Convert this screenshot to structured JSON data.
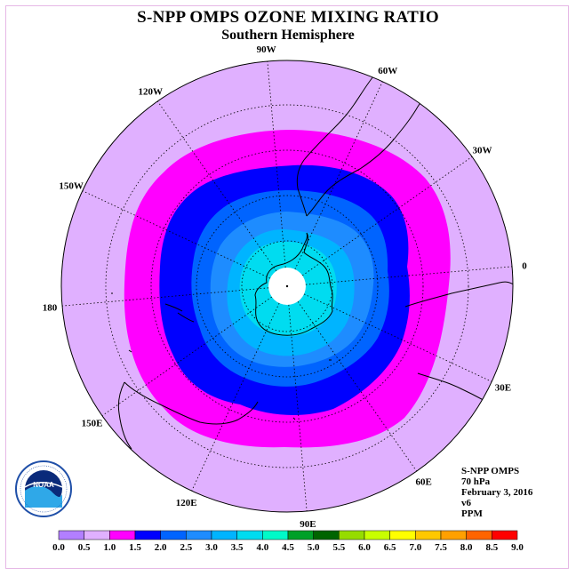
{
  "title": "S-NPP OMPS OZONE MIXING RATIO",
  "subtitle": "Southern Hemisphere",
  "longitude_labels": [
    {
      "text": "90W",
      "lon": -90
    },
    {
      "text": "60W",
      "lon": -60
    },
    {
      "text": "30W",
      "lon": -30
    },
    {
      "text": "0",
      "lon": 0
    },
    {
      "text": "30E",
      "lon": 30
    },
    {
      "text": "60E",
      "lon": 60
    },
    {
      "text": "90E",
      "lon": 90
    },
    {
      "text": "120E",
      "lon": 120
    },
    {
      "text": "150E",
      "lon": 150
    },
    {
      "text": "180",
      "lon": 180
    },
    {
      "text": "150W",
      "lon": -150
    },
    {
      "text": "120W",
      "lon": -120
    }
  ],
  "info": {
    "instrument": "S-NPP OMPS",
    "level": "70 hPa",
    "date": "February 3, 2016",
    "version": "v6",
    "units": "PPM"
  },
  "colorbar": {
    "ticks": [
      "0.0",
      "0.5",
      "1.0",
      "1.5",
      "2.0",
      "2.5",
      "3.0",
      "3.5",
      "4.0",
      "4.5",
      "5.0",
      "5.5",
      "6.0",
      "6.5",
      "7.0",
      "7.5",
      "8.0",
      "8.5",
      "9.0"
    ],
    "colors": [
      "#b27fff",
      "#e0b0ff",
      "#ff00ff",
      "#0000ff",
      "#0064ff",
      "#1e8cff",
      "#00b4ff",
      "#00dcf0",
      "#00fac8",
      "#00a028",
      "#006400",
      "#96dc00",
      "#c8ff00",
      "#ffff00",
      "#ffc800",
      "#ffa000",
      "#ff6400",
      "#ff0000",
      "#8b4513"
    ]
  },
  "map_colors": {
    "band_0p5_1p0": "#e0b0ff",
    "band_1p0_1p5": "#ff00ff",
    "band_1p5_2p0": "#0000ff",
    "band_2p0_2p5": "#0064ff",
    "band_2p5_3p0": "#1e8cff",
    "band_3p0_3p5": "#00b4ff",
    "band_3p5_4p0": "#00dcf0",
    "no_data": "#ffffff"
  },
  "logo": {
    "name": "noaa-logo",
    "text": "NOAA",
    "ring_text": "NATIONAL OCEANIC AND ATMOSPHERIC ADMINISTRATION · U.S. DEPARTMENT OF COMMERCE"
  }
}
